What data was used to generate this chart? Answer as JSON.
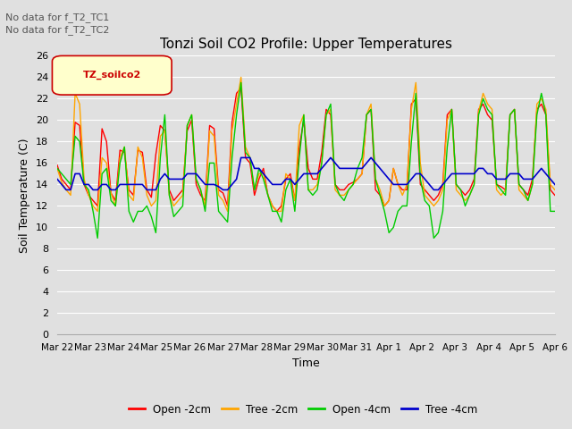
{
  "title": "Tonzi Soil CO2 Profile: Upper Temperatures",
  "ylabel": "Soil Temperature (C)",
  "xlabel": "Time",
  "annotations": [
    "No data for f_T2_TC1",
    "No data for f_T2_TC2"
  ],
  "legend_data_label": "TZ_soilco2",
  "legend_series": [
    "Open -2cm",
    "Tree -2cm",
    "Open -4cm",
    "Tree -4cm"
  ],
  "legend_colors": [
    "#ff0000",
    "#ffa500",
    "#00cc00",
    "#0000cc"
  ],
  "ylim": [
    0,
    26
  ],
  "yticks": [
    0,
    2,
    4,
    6,
    8,
    10,
    12,
    14,
    16,
    18,
    20,
    22,
    24,
    26
  ],
  "xtick_labels": [
    "Mar 22",
    "Mar 23",
    "Mar 24",
    "Mar 25",
    "Mar 26",
    "Mar 27",
    "Mar 28",
    "Mar 29",
    "Mar 30",
    "Mar 31",
    "Apr 1",
    "Apr 2",
    "Apr 3",
    "Apr 4",
    "Apr 5",
    "Apr 6"
  ],
  "background_color": "#e0e0e0",
  "plot_bg_color": "#e0e0e0",
  "grid_color": "#ffffff",
  "open_2cm": [
    15.8,
    14.5,
    14.0,
    13.5,
    19.8,
    19.5,
    14.0,
    13.0,
    12.5,
    12.0,
    19.2,
    18.0,
    13.2,
    12.5,
    17.2,
    17.0,
    13.5,
    13.0,
    17.2,
    17.0,
    13.5,
    12.8,
    16.8,
    19.5,
    19.0,
    13.5,
    12.5,
    13.0,
    13.5,
    19.0,
    20.0,
    14.0,
    13.0,
    12.5,
    19.5,
    19.2,
    13.5,
    13.2,
    12.0,
    19.8,
    22.5,
    23.0,
    16.5,
    16.0,
    13.0,
    14.5,
    15.5,
    13.0,
    12.0,
    11.5,
    12.0,
    14.5,
    15.0,
    12.5,
    17.5,
    20.0,
    15.5,
    14.5,
    14.5,
    17.0,
    21.0,
    20.5,
    14.0,
    13.5,
    13.5,
    14.0,
    14.2,
    14.5,
    15.0,
    20.5,
    21.0,
    13.5,
    13.0,
    12.0,
    12.5,
    15.5,
    14.0,
    13.5,
    13.5,
    21.5,
    22.0,
    14.0,
    13.5,
    13.0,
    12.5,
    13.0,
    14.0,
    20.5,
    21.0,
    14.0,
    13.5,
    13.0,
    13.5,
    14.5,
    21.0,
    21.5,
    20.5,
    20.0,
    14.0,
    13.8,
    13.5,
    20.5,
    21.0,
    14.0,
    13.5,
    13.0,
    14.5,
    21.0,
    21.5,
    20.5,
    13.5,
    13.0
  ],
  "tree_2cm": [
    15.5,
    14.2,
    13.5,
    13.0,
    22.5,
    21.5,
    14.5,
    13.0,
    12.0,
    11.5,
    16.5,
    16.0,
    13.2,
    12.0,
    16.5,
    17.5,
    13.0,
    12.5,
    17.5,
    16.5,
    13.0,
    12.0,
    12.5,
    18.5,
    19.0,
    13.0,
    12.0,
    12.5,
    13.0,
    19.5,
    20.5,
    14.5,
    13.5,
    12.0,
    19.0,
    18.5,
    13.0,
    12.5,
    11.5,
    19.0,
    21.5,
    24.0,
    17.5,
    16.5,
    13.5,
    15.0,
    15.0,
    13.0,
    12.0,
    11.5,
    11.5,
    15.0,
    14.5,
    12.5,
    19.5,
    20.5,
    13.5,
    13.5,
    14.0,
    16.0,
    20.5,
    21.0,
    13.5,
    13.0,
    13.0,
    13.5,
    14.0,
    14.5,
    15.0,
    20.5,
    21.5,
    14.5,
    13.5,
    12.0,
    12.5,
    15.5,
    14.0,
    13.0,
    14.0,
    21.0,
    23.5,
    16.0,
    13.0,
    12.5,
    12.0,
    12.5,
    13.5,
    20.0,
    21.0,
    13.5,
    13.0,
    12.5,
    13.0,
    14.0,
    20.8,
    22.5,
    21.5,
    21.0,
    13.5,
    13.0,
    13.5,
    20.5,
    21.0,
    13.5,
    13.0,
    12.5,
    14.0,
    21.5,
    22.0,
    21.0,
    14.0,
    13.5
  ],
  "open_4cm": [
    15.5,
    15.0,
    14.5,
    14.0,
    18.5,
    18.0,
    14.0,
    13.5,
    11.5,
    9.0,
    15.0,
    15.5,
    12.5,
    12.0,
    16.0,
    17.5,
    11.5,
    10.5,
    11.5,
    11.5,
    12.0,
    11.0,
    9.5,
    16.5,
    20.5,
    13.0,
    11.0,
    11.5,
    12.0,
    19.5,
    20.5,
    14.5,
    13.5,
    11.5,
    16.0,
    16.0,
    11.5,
    11.0,
    10.5,
    16.5,
    20.5,
    23.5,
    17.0,
    16.5,
    13.5,
    15.5,
    14.5,
    13.0,
    11.5,
    11.5,
    10.5,
    13.5,
    14.5,
    11.5,
    16.5,
    20.5,
    13.5,
    13.0,
    13.5,
    16.0,
    20.5,
    21.5,
    14.0,
    13.0,
    12.5,
    13.5,
    14.0,
    15.5,
    16.5,
    20.5,
    21.0,
    14.5,
    13.0,
    11.5,
    9.5,
    10.0,
    11.5,
    12.0,
    12.0,
    18.0,
    22.5,
    14.5,
    12.5,
    12.0,
    9.0,
    9.5,
    11.5,
    17.5,
    21.0,
    14.0,
    13.5,
    12.0,
    13.0,
    14.0,
    20.5,
    22.0,
    21.0,
    20.5,
    14.0,
    13.5,
    13.0,
    20.5,
    21.0,
    14.0,
    13.5,
    12.5,
    14.0,
    20.5,
    22.5,
    20.5,
    11.5,
    11.5
  ],
  "tree_4cm": [
    14.5,
    14.0,
    13.5,
    13.5,
    15.0,
    15.0,
    14.0,
    14.0,
    13.5,
    13.5,
    14.0,
    14.0,
    13.5,
    13.5,
    14.0,
    14.0,
    14.0,
    14.0,
    14.0,
    14.0,
    13.5,
    13.5,
    13.5,
    14.5,
    15.0,
    14.5,
    14.5,
    14.5,
    14.5,
    15.0,
    15.0,
    15.0,
    14.5,
    14.0,
    14.0,
    14.0,
    13.8,
    13.5,
    13.5,
    14.0,
    14.5,
    16.5,
    16.5,
    16.5,
    15.5,
    15.5,
    15.0,
    14.5,
    14.0,
    14.0,
    14.0,
    14.5,
    14.5,
    14.0,
    14.5,
    15.0,
    15.0,
    15.0,
    15.0,
    15.5,
    16.0,
    16.5,
    16.0,
    15.5,
    15.5,
    15.5,
    15.5,
    15.5,
    15.5,
    16.0,
    16.5,
    16.0,
    15.5,
    15.0,
    14.5,
    14.0,
    14.0,
    14.0,
    14.0,
    14.5,
    15.0,
    15.0,
    14.5,
    14.0,
    13.5,
    13.5,
    14.0,
    14.5,
    15.0,
    15.0,
    15.0,
    15.0,
    15.0,
    15.0,
    15.5,
    15.5,
    15.0,
    15.0,
    14.5,
    14.5,
    14.5,
    15.0,
    15.0,
    15.0,
    14.5,
    14.5,
    14.5,
    15.0,
    15.5,
    15.0,
    14.5,
    14.0
  ]
}
